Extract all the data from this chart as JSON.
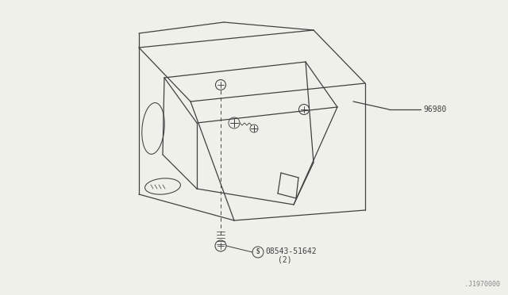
{
  "background_color": "#f0f0eb",
  "fig_width": 6.4,
  "fig_height": 3.72,
  "dpi": 100,
  "part_label_96980": "96980",
  "part_label_screw": "08543-51642",
  "part_label_qty": "(2)",
  "diagram_ref": ".J1970000",
  "line_color": "#404040",
  "text_color": "#404040",
  "label_fontsize": 7,
  "ref_fontsize": 6
}
